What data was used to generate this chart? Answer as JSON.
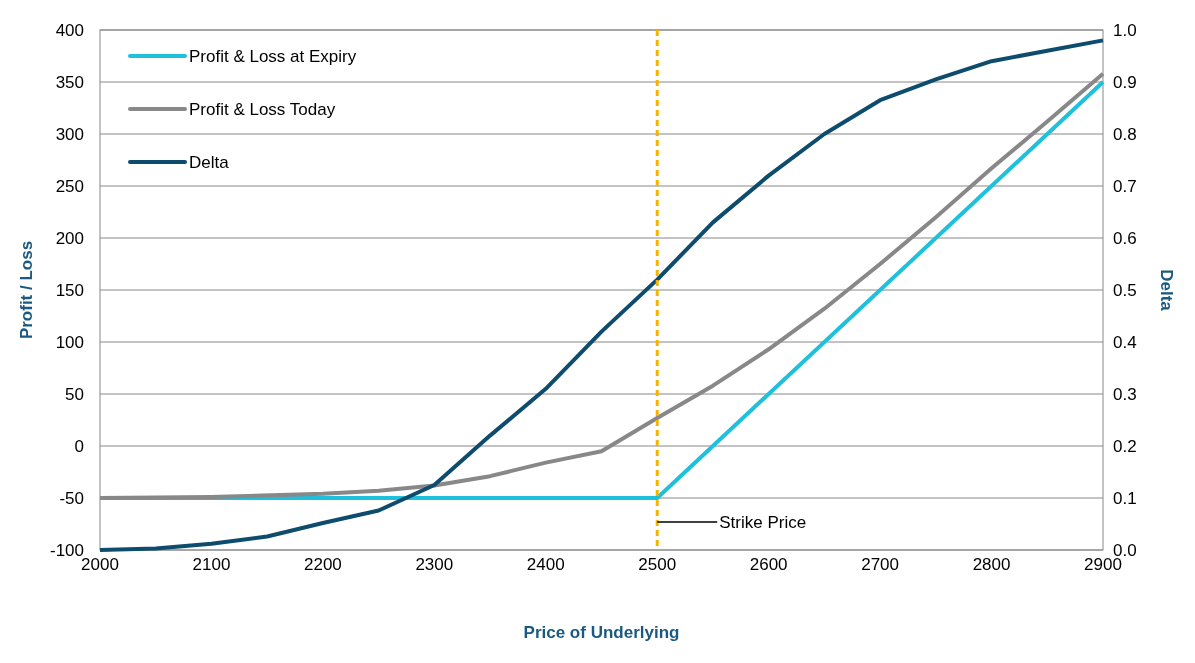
{
  "chart_data": {
    "type": "line",
    "xlabel": "Price of Underlying",
    "ylabel": "Profit / Loss",
    "y2label": "Delta",
    "xlim": [
      2000,
      2900
    ],
    "xticks": [
      2000,
      2100,
      2200,
      2300,
      2400,
      2500,
      2600,
      2700,
      2800,
      2900
    ],
    "ylim": [
      -100,
      400
    ],
    "yticks": [
      -100,
      -50,
      0,
      50,
      100,
      150,
      200,
      250,
      300,
      350,
      400
    ],
    "y2lim": [
      0,
      1
    ],
    "y2ticks": [
      {
        "value": 0,
        "label": "0.0"
      },
      {
        "value": 0.1,
        "label": "0.1"
      },
      {
        "value": 0.2,
        "label": "0.2"
      },
      {
        "value": 0.3,
        "label": "0.3"
      },
      {
        "value": 0.4,
        "label": "0.4"
      },
      {
        "value": 0.5,
        "label": "0.5"
      },
      {
        "value": 0.6,
        "label": "0.6"
      },
      {
        "value": 0.7,
        "label": "0.7"
      },
      {
        "value": 0.8,
        "label": "0.8"
      },
      {
        "value": 0.9,
        "label": "0.9"
      },
      {
        "value": 1,
        "label": "1.0"
      }
    ],
    "grid": "y",
    "legend": "top left",
    "line_style": "solid",
    "series": [
      {
        "name": "Profit & Loss at Expiry",
        "color": "#1ec0dc",
        "x": [
          2000,
          2500,
          2900
        ],
        "values": [
          -50,
          -50,
          350
        ]
      },
      {
        "name": "Profit & Loss Today",
        "color": "#888888",
        "x": [
          2000,
          2100,
          2200,
          2250,
          2300,
          2350,
          2400,
          2450,
          2500,
          2550,
          2600,
          2650,
          2700,
          2750,
          2800,
          2850,
          2900
        ],
        "values": [
          -50,
          -49,
          -46,
          -43,
          -38,
          -29,
          -16,
          -5,
          27,
          58,
          93,
          132,
          175,
          220,
          267,
          312,
          358
        ]
      },
      {
        "name": "Delta",
        "color": "#0e4c6e",
        "axis": "y2",
        "x": [
          2000,
          2050,
          2100,
          2150,
          2200,
          2250,
          2300,
          2350,
          2400,
          2450,
          2500,
          2550,
          2600,
          2650,
          2700,
          2750,
          2800,
          2850,
          2900
        ],
        "values": [
          0,
          0.003,
          0.012,
          0.026,
          0.052,
          0.076,
          0.125,
          0.22,
          0.31,
          0.42,
          0.52,
          0.63,
          0.72,
          0.8,
          0.865,
          0.905,
          0.94,
          0.96,
          0.98
        ]
      }
    ],
    "ref_lines": [
      {
        "axis": "x",
        "value": 2500,
        "label": "Strike Price",
        "color": "#f5b400",
        "line_style": "dashed"
      }
    ]
  }
}
